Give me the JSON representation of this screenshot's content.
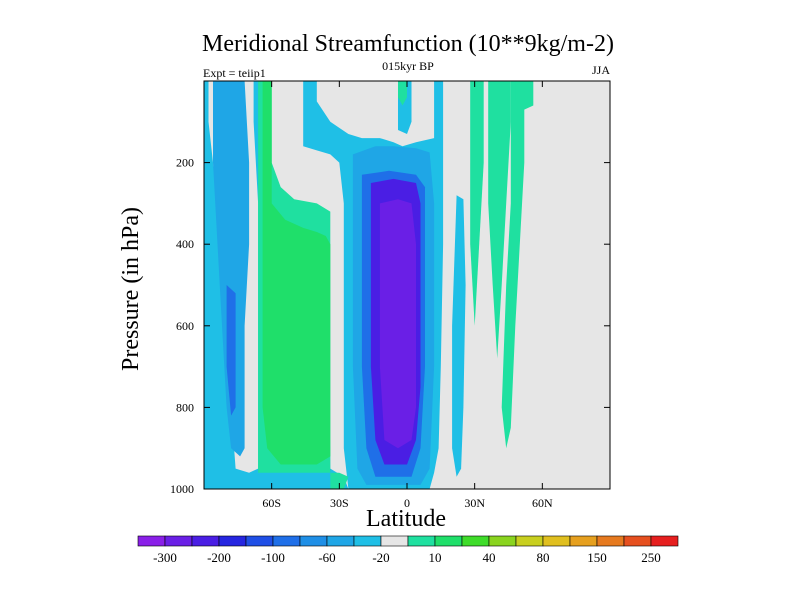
{
  "chart_data": {
    "type": "heatmap",
    "title": "Meridional Streamfunction (10**9kg/m-2)",
    "left_label": "Expt = teiip1",
    "center_label": "015kyr BP",
    "right_label": "JJA",
    "xlabel": "Latitude",
    "ylabel": "Pressure (in hPa)",
    "xlim": [
      -90,
      90
    ],
    "ylim": [
      1000,
      0
    ],
    "x_ticks": [
      {
        "value": -60,
        "label": "60S"
      },
      {
        "value": -30,
        "label": "30S"
      },
      {
        "value": 0,
        "label": "0"
      },
      {
        "value": 30,
        "label": "30N"
      },
      {
        "value": 60,
        "label": "60N"
      }
    ],
    "y_ticks": [
      {
        "value": 200,
        "label": "200"
      },
      {
        "value": 400,
        "label": "400"
      },
      {
        "value": 600,
        "label": "600"
      },
      {
        "value": 800,
        "label": "800"
      },
      {
        "value": 1000,
        "label": "1000"
      }
    ],
    "background_color": "#e6e6e6",
    "colorbar": {
      "colors": [
        "#8a1fe8",
        "#6a1fe6",
        "#4a1ee4",
        "#2626e0",
        "#1f4fe6",
        "#1f6fe8",
        "#1f8fe6",
        "#1fa6e6",
        "#1fbfe6",
        "#e6e6e6",
        "#1fe0a0",
        "#1fdf6a",
        "#3fdc2a",
        "#8ad41f",
        "#c8cf1f",
        "#e0bf1f",
        "#e6a01f",
        "#e67a1f",
        "#e6501f",
        "#e61f1f"
      ],
      "labels": [
        "-300",
        "-200",
        "-100",
        "-60",
        "-20",
        "10",
        "40",
        "80",
        "150",
        "250"
      ]
    },
    "contour_regions": [
      {
        "level": -20,
        "color": "#1fbfe6",
        "polygon": [
          [
            -90,
            0
          ],
          [
            -88,
            0
          ],
          [
            -88,
            100
          ],
          [
            -86,
            200
          ],
          [
            -84,
            300
          ],
          [
            -82,
            400
          ],
          [
            -80,
            600
          ],
          [
            -78,
            800
          ],
          [
            -76,
            950
          ],
          [
            -70,
            960
          ],
          [
            -66,
            950
          ],
          [
            -66,
            300
          ],
          [
            -68,
            100
          ],
          [
            -68,
            0
          ],
          [
            -62,
            0
          ],
          [
            -62,
            300
          ],
          [
            -58,
            350
          ],
          [
            -50,
            380
          ],
          [
            -40,
            380
          ],
          [
            -35,
            380
          ],
          [
            -34,
            950
          ],
          [
            -28,
            970
          ],
          [
            -26,
            1000
          ],
          [
            -90,
            1000
          ]
        ]
      },
      {
        "level": -20,
        "color": "#1fbfe6",
        "polygon": [
          [
            -46,
            0
          ],
          [
            -40,
            0
          ],
          [
            -40,
            50
          ],
          [
            -34,
            100
          ],
          [
            -26,
            130
          ],
          [
            -20,
            140
          ],
          [
            -12,
            140
          ],
          [
            -6,
            150
          ],
          [
            -2,
            160
          ],
          [
            4,
            150
          ],
          [
            12,
            140
          ],
          [
            12,
            0
          ],
          [
            16,
            0
          ],
          [
            16,
            400
          ],
          [
            15,
            700
          ],
          [
            14,
            900
          ],
          [
            12,
            960
          ],
          [
            10,
            1000
          ],
          [
            -26,
            1000
          ],
          [
            -28,
            900
          ],
          [
            -28,
            500
          ],
          [
            -28,
            300
          ],
          [
            -30,
            200
          ],
          [
            -34,
            180
          ],
          [
            -40,
            170
          ],
          [
            -46,
            160
          ]
        ]
      },
      {
        "level": -20,
        "color": "#1fbfe6",
        "polygon": [
          [
            -4,
            0
          ],
          [
            2,
            0
          ],
          [
            2,
            100
          ],
          [
            0,
            130
          ],
          [
            -4,
            120
          ]
        ]
      },
      {
        "level": -20,
        "color": "#1fbfe6",
        "polygon": [
          [
            22,
            280
          ],
          [
            25,
            290
          ],
          [
            26,
            500
          ],
          [
            25,
            800
          ],
          [
            24,
            950
          ],
          [
            22,
            970
          ],
          [
            20,
            900
          ],
          [
            20,
            600
          ]
        ]
      },
      {
        "level": -60,
        "color": "#1fa6e6",
        "polygon": [
          [
            -90,
            0
          ],
          [
            -86,
            0
          ],
          [
            -86,
            200
          ],
          [
            -84,
            400
          ],
          [
            -82,
            600
          ],
          [
            -80,
            800
          ],
          [
            -78,
            900
          ],
          [
            -74,
            920
          ],
          [
            -72,
            900
          ],
          [
            -72,
            600
          ],
          [
            -70,
            400
          ],
          [
            -70,
            200
          ],
          [
            -72,
            0
          ],
          [
            -90,
            0
          ]
        ]
      },
      {
        "level": -60,
        "color": "#1fa6e6",
        "polygon": [
          [
            -24,
            180
          ],
          [
            -14,
            160
          ],
          [
            -6,
            160
          ],
          [
            4,
            165
          ],
          [
            10,
            175
          ],
          [
            12,
            300
          ],
          [
            12,
            700
          ],
          [
            10,
            950
          ],
          [
            6,
            990
          ],
          [
            -18,
            990
          ],
          [
            -22,
            950
          ],
          [
            -24,
            700
          ],
          [
            -24,
            400
          ]
        ]
      },
      {
        "level": -100,
        "color": "#1f6fe8",
        "polygon": [
          [
            -80,
            500
          ],
          [
            -76,
            520
          ],
          [
            -76,
            800
          ],
          [
            -78,
            820
          ],
          [
            -80,
            700
          ]
        ]
      },
      {
        "level": -100,
        "color": "#1f6fe8",
        "polygon": [
          [
            -20,
            230
          ],
          [
            -8,
            220
          ],
          [
            4,
            230
          ],
          [
            8,
            260
          ],
          [
            8,
            700
          ],
          [
            6,
            900
          ],
          [
            2,
            970
          ],
          [
            -14,
            970
          ],
          [
            -18,
            900
          ],
          [
            -20,
            700
          ]
        ]
      },
      {
        "level": -200,
        "color": "#4a1ee4",
        "polygon": [
          [
            -16,
            250
          ],
          [
            -6,
            240
          ],
          [
            4,
            250
          ],
          [
            6,
            300
          ],
          [
            6,
            750
          ],
          [
            4,
            880
          ],
          [
            0,
            940
          ],
          [
            -10,
            940
          ],
          [
            -14,
            880
          ],
          [
            -16,
            700
          ]
        ]
      },
      {
        "level": -300,
        "color": "#6a1fe6",
        "polygon": [
          [
            -12,
            300
          ],
          [
            -4,
            290
          ],
          [
            2,
            300
          ],
          [
            4,
            400
          ],
          [
            4,
            800
          ],
          [
            2,
            880
          ],
          [
            -4,
            900
          ],
          [
            -10,
            880
          ],
          [
            -12,
            700
          ]
        ]
      },
      {
        "level": 10,
        "color": "#1fe0a0",
        "polygon": [
          [
            -66,
            0
          ],
          [
            -60,
            0
          ],
          [
            -60,
            200
          ],
          [
            -56,
            260
          ],
          [
            -50,
            290
          ],
          [
            -40,
            300
          ],
          [
            -34,
            320
          ],
          [
            -34,
            1000
          ],
          [
            -28,
            1000
          ],
          [
            -26,
            970
          ],
          [
            -30,
            960
          ],
          [
            -66,
            960
          ]
        ]
      },
      {
        "level": 40,
        "color": "#1fdf6a",
        "polygon": [
          [
            -64,
            0
          ],
          [
            -60,
            0
          ],
          [
            -60,
            300
          ],
          [
            -54,
            340
          ],
          [
            -46,
            360
          ],
          [
            -40,
            370
          ],
          [
            -36,
            380
          ],
          [
            -34,
            400
          ],
          [
            -34,
            920
          ],
          [
            -40,
            940
          ],
          [
            -56,
            940
          ],
          [
            -62,
            900
          ],
          [
            -64,
            800
          ],
          [
            -64,
            300
          ]
        ]
      },
      {
        "level": 10,
        "color": "#1fe0a0",
        "polygon": [
          [
            -4,
            0
          ],
          [
            0,
            0
          ],
          [
            0,
            40
          ],
          [
            -2,
            60
          ],
          [
            -4,
            40
          ]
        ]
      },
      {
        "level": 10,
        "color": "#1fe0a0",
        "polygon": [
          [
            28,
            0
          ],
          [
            34,
            0
          ],
          [
            34,
            200
          ],
          [
            32,
            400
          ],
          [
            30,
            600
          ],
          [
            28,
            400
          ],
          [
            28,
            100
          ]
        ]
      },
      {
        "level": 10,
        "color": "#1fe0a0",
        "polygon": [
          [
            36,
            0
          ],
          [
            46,
            0
          ],
          [
            46,
            100
          ],
          [
            44,
            300
          ],
          [
            42,
            500
          ],
          [
            40,
            680
          ],
          [
            38,
            500
          ],
          [
            36,
            300
          ]
        ]
      },
      {
        "level": 10,
        "color": "#1fe0a0",
        "polygon": [
          [
            46,
            0
          ],
          [
            52,
            0
          ],
          [
            52,
            200
          ],
          [
            50,
            400
          ],
          [
            48,
            600
          ],
          [
            46,
            850
          ],
          [
            44,
            900
          ],
          [
            42,
            800
          ],
          [
            44,
            500
          ],
          [
            46,
            300
          ]
        ]
      },
      {
        "level": 10,
        "color": "#1fe0a0",
        "polygon": [
          [
            48,
            0
          ],
          [
            56,
            0
          ],
          [
            56,
            60
          ],
          [
            52,
            70
          ],
          [
            48,
            50
          ]
        ]
      }
    ]
  }
}
